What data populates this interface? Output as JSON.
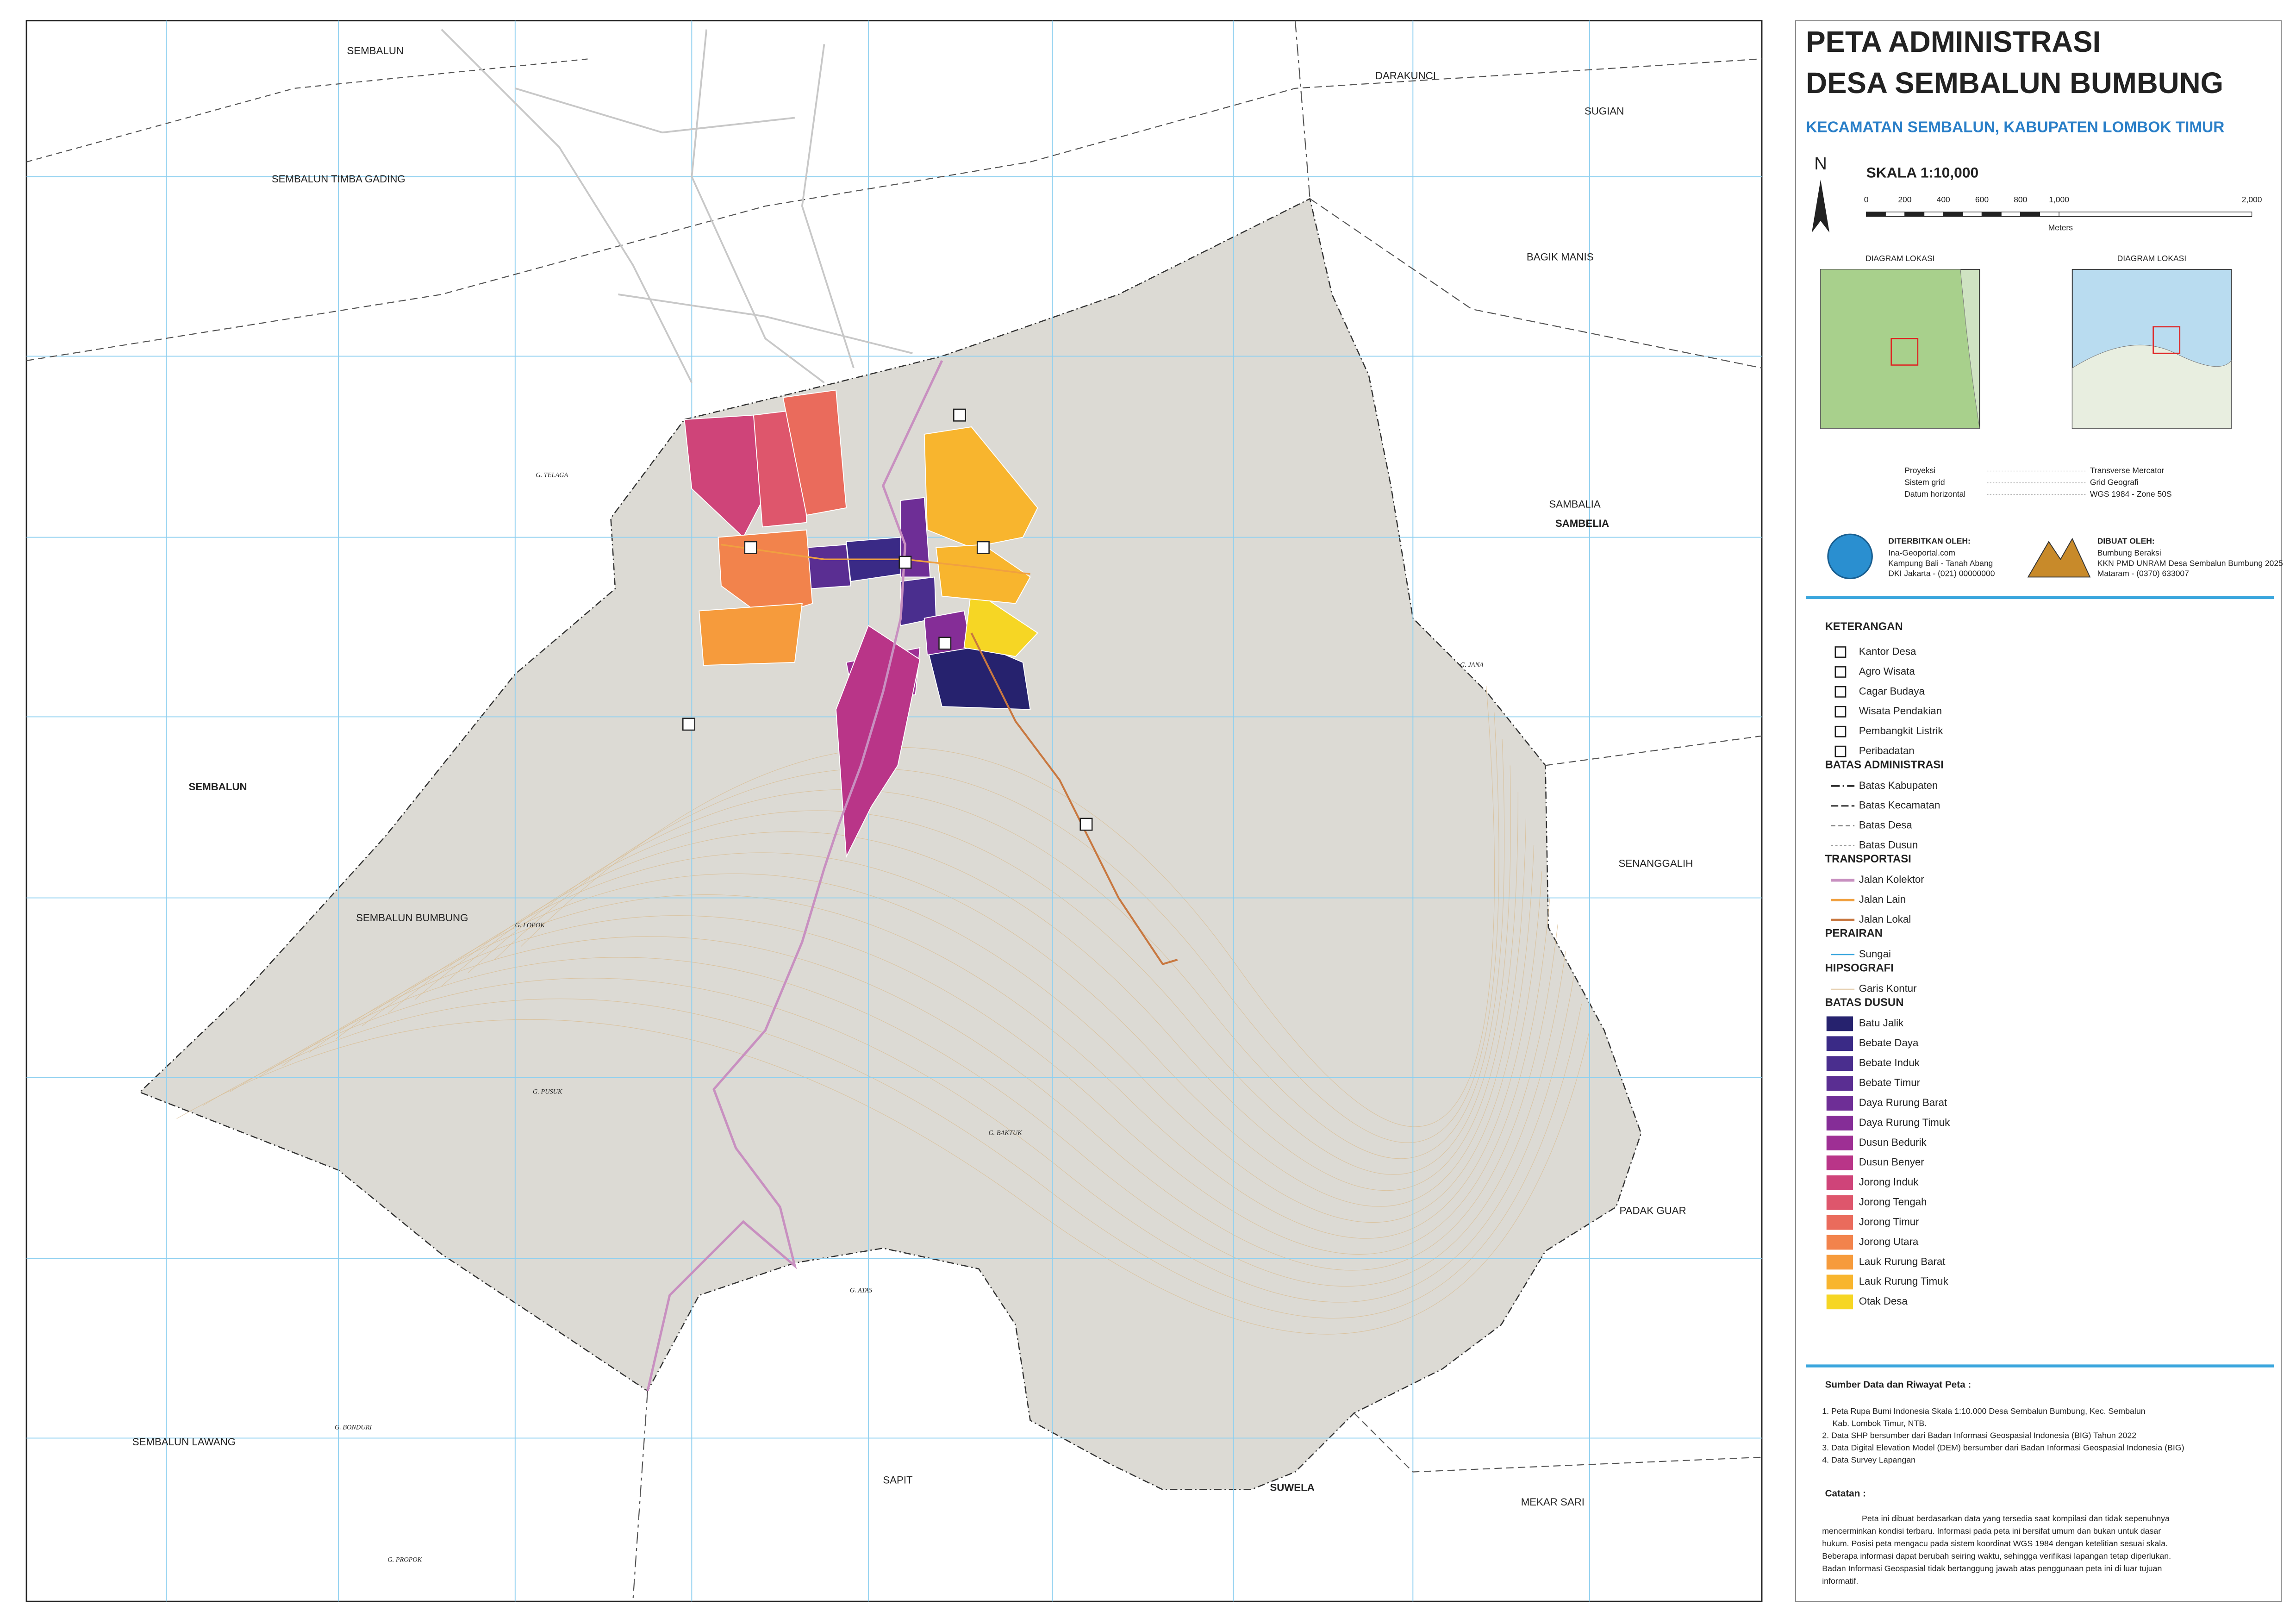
{
  "header": {
    "title_line1": "PETA ADMINISTRASI",
    "title_line2": "DESA SEMBALUN BUMBUNG",
    "subtitle": "KECAMATAN SEMBALUN, KABUPATEN LOMBOK TIMUR"
  },
  "scale": {
    "north": "N",
    "label": "SKALA 1:10,000",
    "ticks": [
      "0",
      "200",
      "400",
      "600",
      "800",
      "1,000",
      "2,000"
    ],
    "unit": "Meters"
  },
  "location_diagrams": [
    "DIAGRAM LOKASI",
    "DIAGRAM LOKASI"
  ],
  "projection": [
    [
      "Proyeksi",
      "Transverse Mercator"
    ],
    [
      "Sistem grid",
      "Grid Geografi"
    ],
    [
      "Datum horizontal",
      "WGS 1984 - Zone 50S"
    ]
  ],
  "publishers": {
    "left": {
      "heading": "DITERBITKAN OLEH:",
      "lines": [
        "Ina-Geoportal.com",
        "Kampung Bali - Tanah Abang",
        "DKI Jakarta - (021) 00000000"
      ]
    },
    "right": {
      "heading": "DIBUAT OLEH:",
      "lines": [
        "Bumbung Beraksi",
        "KKN PMD UNRAM Desa Sembalun Bumbung 2025",
        "Mataram - (0370) 633007"
      ]
    }
  },
  "legend": {
    "title": "KETERANGAN",
    "points": [
      "Kantor Desa",
      "Agro Wisata",
      "Cagar Budaya",
      "Wisata Pendakian",
      "Pembangkit Listrik",
      "Peribadatan"
    ],
    "sections": [
      {
        "heading": "BATAS ADMINISTRASI",
        "items": [
          "Batas Kabupaten",
          "Batas Kecamatan",
          "Batas Desa",
          "Batas Dusun"
        ]
      },
      {
        "heading": "TRANSPORTASI",
        "items": [
          "Jalan Kolektor",
          "Jalan Lain",
          "Jalan Lokal"
        ]
      },
      {
        "heading": "PERAIRAN",
        "items": [
          "Sungai"
        ]
      },
      {
        "heading": "HIPSOGRAFI",
        "items": [
          "Garis Kontur"
        ]
      }
    ],
    "dusun_heading": "BATAS DUSUN",
    "dusun": [
      {
        "name": "Batu Jalik",
        "color": "#26226e"
      },
      {
        "name": "Bebate Daya",
        "color": "#3a2a86"
      },
      {
        "name": "Bebate Induk",
        "color": "#4a2e8e"
      },
      {
        "name": "Bebate Timur",
        "color": "#5a2e92"
      },
      {
        "name": "Daya Rurung Barat",
        "color": "#6e2e96"
      },
      {
        "name": "Daya Rurung Timuk",
        "color": "#852d97"
      },
      {
        "name": "Dusun Bedurik",
        "color": "#9e2f94"
      },
      {
        "name": "Dusun Benyer",
        "color": "#b93588"
      },
      {
        "name": "Jorong Induk",
        "color": "#cf4479"
      },
      {
        "name": "Jorong Tengah",
        "color": "#de566c"
      },
      {
        "name": "Jorong Timur",
        "color": "#ea6b5c"
      },
      {
        "name": "Jorong Utara",
        "color": "#f2834c"
      },
      {
        "name": "Lauk Rurung Barat",
        "color": "#f69b3c"
      },
      {
        "name": "Lauk Rurung Timuk",
        "color": "#f8b52e"
      },
      {
        "name": "Otak Desa",
        "color": "#f6d624"
      }
    ]
  },
  "sources": {
    "heading": "Sumber Data dan Riwayat Peta :",
    "lines": [
      "1. Peta Rupa Bumi Indonesia Skala 1:10.000 Desa Sembalun Bumbung, Kec. Sembalun",
      "Kab. Lombok Timur, NTB.",
      "2. Data SHP bersumber dari Badan Informasi Geospasial Indonesia (BIG) Tahun 2022",
      "3. Data Digital Elevation Model (DEM) bersumber dari Badan Informasi Geospasial Indonesia (BIG)",
      "4. Data Survey Lapangan"
    ]
  },
  "notes": {
    "heading": "Catatan :",
    "lines": [
      "Peta ini dibuat berdasarkan data yang tersedia saat kompilasi dan tidak sepenuhnya",
      "mencerminkan kondisi terbaru. Informasi pada peta ini bersifat umum dan bukan untuk dasar",
      "hukum. Posisi peta mengacu pada sistem koordinat WGS 1984 dengan ketelitian sesuai skala.",
      "Beberapa informasi dapat berubah seiring waktu, sehingga verifikasi lapangan tetap diperlukan.",
      "Badan Informasi Geospasial tidak bertanggung jawab atas penggunaan peta ini di luar tujuan",
      "informatif."
    ]
  },
  "map": {
    "places": [
      "SEMBALUN",
      "DARAKUNCI",
      "SUGIAN",
      "SEMBALUN TIMBA GADING",
      "BAGIK MANIS",
      "SAMBALIA",
      "SAMBELIA",
      "SEMBALUN",
      "SENANGGALIH",
      "SEMBALUN BUMBUNG",
      "PADAK GUAR",
      "SEMBALUN LAWANG",
      "SAPIT",
      "SUWELA",
      "MEKAR SARI"
    ],
    "peaks": [
      "G. TELAGA",
      "G. LOPOK",
      "G. PUSUK",
      "G. BAKTUK",
      "G. ATAS",
      "G. BONDURI",
      "G. PROPOK",
      "G. JANA"
    ]
  }
}
